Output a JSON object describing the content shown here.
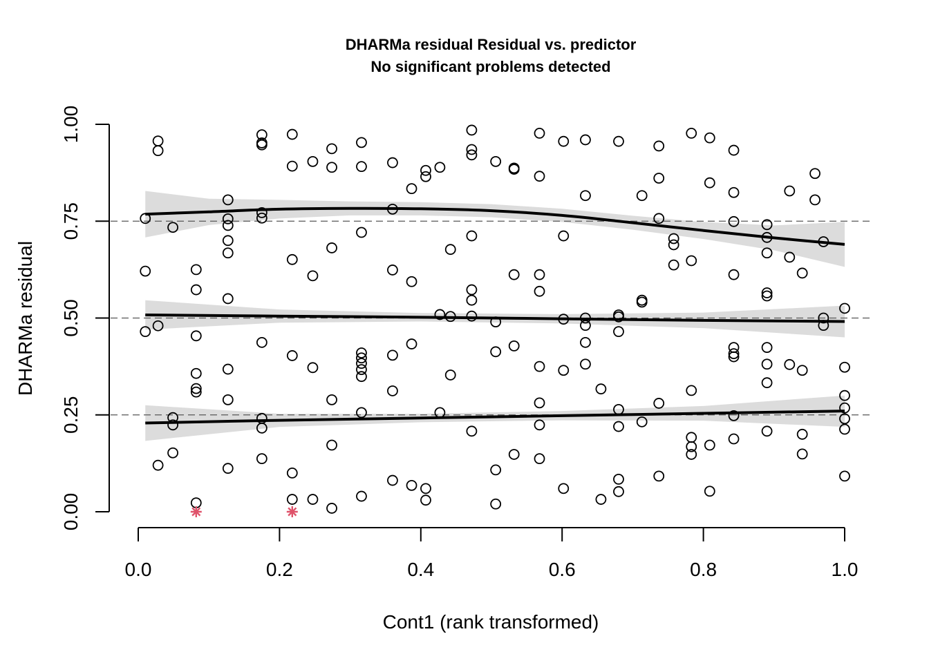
{
  "chart_data": {
    "type": "scatter",
    "title": "DHARMa residual Residual vs. predictor",
    "subtitle": "No significant problems detected",
    "xlabel": "Cont1 (rank transformed)",
    "ylabel": "DHARMa residual",
    "xlim": [
      0,
      1
    ],
    "ylim": [
      0,
      1
    ],
    "x_ticks": [
      "0.0",
      "0.2",
      "0.4",
      "0.6",
      "0.8",
      "1.0"
    ],
    "x_tick_values": [
      0,
      0.2,
      0.4,
      0.6,
      0.8,
      1.0
    ],
    "y_ticks": [
      "0.00",
      "0.25",
      "0.50",
      "0.75",
      "1.00"
    ],
    "y_tick_values": [
      0,
      0.25,
      0.5,
      0.75,
      1.0
    ],
    "reference_lines": [
      0.25,
      0.5,
      0.75
    ],
    "grid": false,
    "legend": "none",
    "colors": {
      "points": "#000000",
      "outliers": "#df536b",
      "band": "#dcdcdc",
      "quantile_curves": "#000000"
    },
    "points": [
      [
        0.01,
        0.757
      ],
      [
        0.01,
        0.621
      ],
      [
        0.01,
        0.465
      ],
      [
        0.028,
        0.957
      ],
      [
        0.028,
        0.932
      ],
      [
        0.028,
        0.48
      ],
      [
        0.028,
        0.12
      ],
      [
        0.049,
        0.734
      ],
      [
        0.049,
        0.243
      ],
      [
        0.049,
        0.224
      ],
      [
        0.049,
        0.152
      ],
      [
        0.082,
        0.625
      ],
      [
        0.082,
        0.573
      ],
      [
        0.082,
        0.454
      ],
      [
        0.082,
        0.357
      ],
      [
        0.082,
        0.318
      ],
      [
        0.082,
        0.309
      ],
      [
        0.082,
        0.023
      ],
      [
        0.127,
        0.805
      ],
      [
        0.127,
        0.756
      ],
      [
        0.127,
        0.739
      ],
      [
        0.127,
        0.7
      ],
      [
        0.127,
        0.668
      ],
      [
        0.127,
        0.55
      ],
      [
        0.127,
        0.368
      ],
      [
        0.127,
        0.289
      ],
      [
        0.127,
        0.112
      ],
      [
        0.175,
        0.973
      ],
      [
        0.175,
        0.952
      ],
      [
        0.175,
        0.947
      ],
      [
        0.175,
        0.772
      ],
      [
        0.175,
        0.758
      ],
      [
        0.175,
        0.437
      ],
      [
        0.175,
        0.241
      ],
      [
        0.175,
        0.216
      ],
      [
        0.175,
        0.137
      ],
      [
        0.218,
        0.974
      ],
      [
        0.218,
        0.892
      ],
      [
        0.218,
        0.651
      ],
      [
        0.218,
        0.403
      ],
      [
        0.218,
        0.1
      ],
      [
        0.218,
        0.032
      ],
      [
        0.247,
        0.904
      ],
      [
        0.247,
        0.609
      ],
      [
        0.247,
        0.372
      ],
      [
        0.247,
        0.032
      ],
      [
        0.274,
        0.937
      ],
      [
        0.274,
        0.889
      ],
      [
        0.274,
        0.681
      ],
      [
        0.274,
        0.289
      ],
      [
        0.274,
        0.172
      ],
      [
        0.274,
        0.009
      ],
      [
        0.316,
        0.953
      ],
      [
        0.316,
        0.891
      ],
      [
        0.316,
        0.721
      ],
      [
        0.316,
        0.41
      ],
      [
        0.316,
        0.397
      ],
      [
        0.316,
        0.383
      ],
      [
        0.316,
        0.367
      ],
      [
        0.316,
        0.349
      ],
      [
        0.316,
        0.256
      ],
      [
        0.316,
        0.04
      ],
      [
        0.36,
        0.901
      ],
      [
        0.36,
        0.781
      ],
      [
        0.36,
        0.624
      ],
      [
        0.36,
        0.404
      ],
      [
        0.36,
        0.312
      ],
      [
        0.36,
        0.081
      ],
      [
        0.387,
        0.834
      ],
      [
        0.387,
        0.594
      ],
      [
        0.387,
        0.433
      ],
      [
        0.387,
        0.068
      ],
      [
        0.407,
        0.881
      ],
      [
        0.407,
        0.865
      ],
      [
        0.407,
        0.06
      ],
      [
        0.407,
        0.03
      ],
      [
        0.427,
        0.889
      ],
      [
        0.427,
        0.509
      ],
      [
        0.427,
        0.256
      ],
      [
        0.442,
        0.677
      ],
      [
        0.442,
        0.504
      ],
      [
        0.442,
        0.353
      ],
      [
        0.472,
        0.985
      ],
      [
        0.472,
        0.935
      ],
      [
        0.472,
        0.921
      ],
      [
        0.472,
        0.712
      ],
      [
        0.472,
        0.573
      ],
      [
        0.472,
        0.546
      ],
      [
        0.472,
        0.505
      ],
      [
        0.472,
        0.208
      ],
      [
        0.506,
        0.904
      ],
      [
        0.506,
        0.49
      ],
      [
        0.506,
        0.413
      ],
      [
        0.506,
        0.108
      ],
      [
        0.506,
        0.02
      ],
      [
        0.532,
        0.887
      ],
      [
        0.532,
        0.884
      ],
      [
        0.532,
        0.612
      ],
      [
        0.532,
        0.428
      ],
      [
        0.532,
        0.148
      ],
      [
        0.568,
        0.977
      ],
      [
        0.568,
        0.866
      ],
      [
        0.568,
        0.612
      ],
      [
        0.568,
        0.569
      ],
      [
        0.568,
        0.375
      ],
      [
        0.568,
        0.281
      ],
      [
        0.568,
        0.224
      ],
      [
        0.568,
        0.137
      ],
      [
        0.602,
        0.956
      ],
      [
        0.602,
        0.712
      ],
      [
        0.602,
        0.497
      ],
      [
        0.602,
        0.365
      ],
      [
        0.602,
        0.06
      ],
      [
        0.633,
        0.96
      ],
      [
        0.633,
        0.816
      ],
      [
        0.633,
        0.5
      ],
      [
        0.633,
        0.481
      ],
      [
        0.633,
        0.437
      ],
      [
        0.633,
        0.381
      ],
      [
        0.655,
        0.317
      ],
      [
        0.655,
        0.032
      ],
      [
        0.68,
        0.956
      ],
      [
        0.68,
        0.508
      ],
      [
        0.68,
        0.503
      ],
      [
        0.68,
        0.465
      ],
      [
        0.68,
        0.264
      ],
      [
        0.68,
        0.22
      ],
      [
        0.68,
        0.084
      ],
      [
        0.68,
        0.052
      ],
      [
        0.713,
        0.816
      ],
      [
        0.713,
        0.546
      ],
      [
        0.713,
        0.541
      ],
      [
        0.713,
        0.232
      ],
      [
        0.737,
        0.944
      ],
      [
        0.737,
        0.861
      ],
      [
        0.737,
        0.757
      ],
      [
        0.737,
        0.28
      ],
      [
        0.737,
        0.092
      ],
      [
        0.758,
        0.705
      ],
      [
        0.758,
        0.689
      ],
      [
        0.758,
        0.637
      ],
      [
        0.783,
        0.977
      ],
      [
        0.783,
        0.648
      ],
      [
        0.783,
        0.313
      ],
      [
        0.783,
        0.192
      ],
      [
        0.783,
        0.168
      ],
      [
        0.783,
        0.148
      ],
      [
        0.809,
        0.965
      ],
      [
        0.809,
        0.849
      ],
      [
        0.809,
        0.172
      ],
      [
        0.809,
        0.053
      ],
      [
        0.843,
        0.933
      ],
      [
        0.843,
        0.824
      ],
      [
        0.843,
        0.749
      ],
      [
        0.843,
        0.612
      ],
      [
        0.843,
        0.424
      ],
      [
        0.843,
        0.408
      ],
      [
        0.843,
        0.4
      ],
      [
        0.843,
        0.248
      ],
      [
        0.843,
        0.188
      ],
      [
        0.89,
        0.741
      ],
      [
        0.89,
        0.708
      ],
      [
        0.89,
        0.668
      ],
      [
        0.89,
        0.565
      ],
      [
        0.89,
        0.557
      ],
      [
        0.89,
        0.424
      ],
      [
        0.89,
        0.381
      ],
      [
        0.89,
        0.333
      ],
      [
        0.89,
        0.208
      ],
      [
        0.922,
        0.828
      ],
      [
        0.922,
        0.657
      ],
      [
        0.922,
        0.38
      ],
      [
        0.94,
        0.616
      ],
      [
        0.94,
        0.365
      ],
      [
        0.94,
        0.2
      ],
      [
        0.94,
        0.149
      ],
      [
        0.958,
        0.873
      ],
      [
        0.958,
        0.805
      ],
      [
        0.97,
        0.697
      ],
      [
        0.97,
        0.5
      ],
      [
        0.97,
        0.481
      ],
      [
        1.0,
        0.525
      ],
      [
        1.0,
        0.373
      ],
      [
        1.0,
        0.3
      ],
      [
        1.0,
        0.268
      ],
      [
        1.0,
        0.24
      ],
      [
        1.0,
        0.213
      ],
      [
        1.0,
        0.092
      ]
    ],
    "outliers": [
      [
        0.082,
        0.0
      ],
      [
        0.218,
        0.0
      ]
    ],
    "quantile_curves": [
      {
        "quantile": 0.75,
        "x": [
          0.01,
          0.1,
          0.2,
          0.3,
          0.4,
          0.5,
          0.6,
          0.7,
          0.8,
          0.9,
          1.0
        ],
        "y": [
          0.768,
          0.774,
          0.781,
          0.783,
          0.782,
          0.777,
          0.765,
          0.746,
          0.726,
          0.707,
          0.69
        ],
        "lower": [
          0.708,
          0.74,
          0.757,
          0.765,
          0.765,
          0.76,
          0.748,
          0.728,
          0.704,
          0.675,
          0.632
        ],
        "upper": [
          0.828,
          0.808,
          0.805,
          0.801,
          0.799,
          0.794,
          0.782,
          0.764,
          0.748,
          0.739,
          0.748
        ]
      },
      {
        "quantile": 0.5,
        "x": [
          0.01,
          0.2,
          0.4,
          0.6,
          0.8,
          1.0
        ],
        "y": [
          0.508,
          0.505,
          0.502,
          0.498,
          0.494,
          0.491
        ],
        "lower": [
          0.47,
          0.488,
          0.491,
          0.486,
          0.474,
          0.45
        ],
        "upper": [
          0.546,
          0.522,
          0.513,
          0.51,
          0.514,
          0.532
        ]
      },
      {
        "quantile": 0.25,
        "x": [
          0.01,
          0.2,
          0.4,
          0.6,
          0.8,
          1.0
        ],
        "y": [
          0.229,
          0.236,
          0.242,
          0.248,
          0.254,
          0.26
        ],
        "lower": [
          0.183,
          0.219,
          0.231,
          0.236,
          0.235,
          0.219
        ],
        "upper": [
          0.275,
          0.253,
          0.253,
          0.26,
          0.273,
          0.3
        ]
      }
    ]
  }
}
